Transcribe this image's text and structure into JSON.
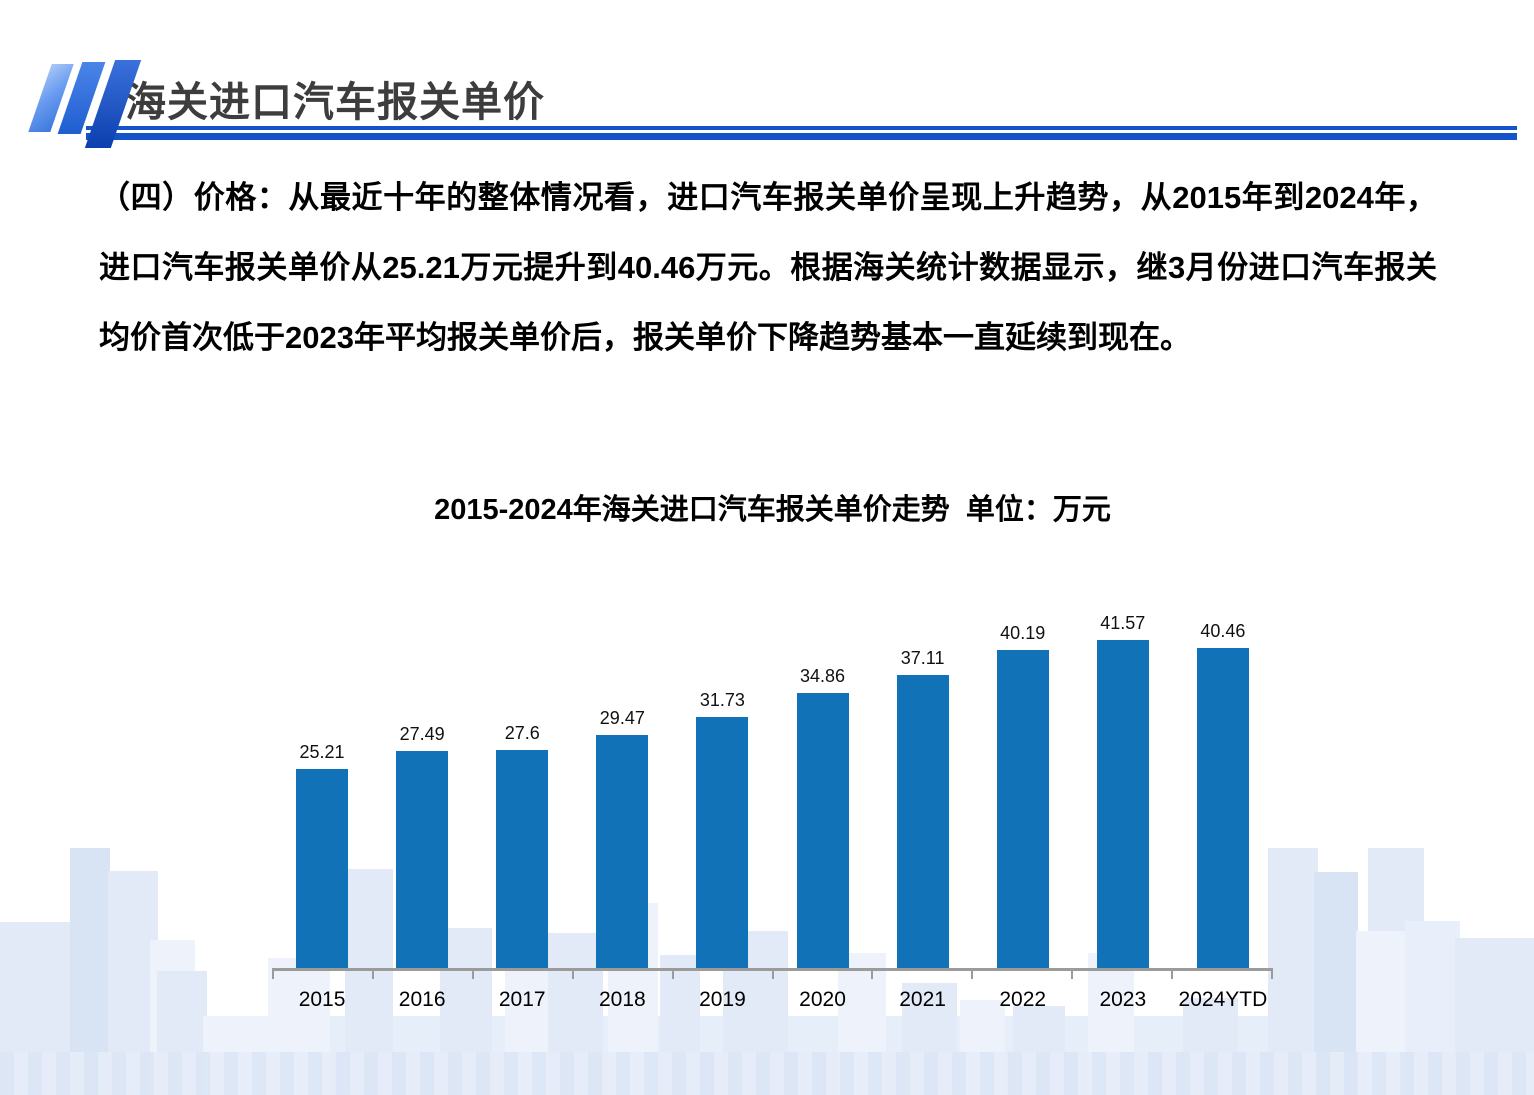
{
  "slide": {
    "header": {
      "title": "海关进口汽车报关单价"
    },
    "paragraph": "（四）价格：从最近十年的整体情况看，进口汽车报关单价呈现上升趋势，从2015年到2024年，进口汽车报关单价从25.21万元提升到40.46万元。根据海关统计数据显示，继3月份进口汽车报关均价首次低于2023年平均报关单价后，报关单价下降趋势基本一直延续到现在。"
  },
  "chart_data": {
    "type": "bar",
    "title": "2015-2024年海关进口汽车报关单价走势  单位：万元",
    "categories": [
      "2015",
      "2016",
      "2017",
      "2018",
      "2019",
      "2020",
      "2021",
      "2022",
      "2023",
      "2024YTD"
    ],
    "values": [
      25.21,
      27.49,
      27.6,
      29.47,
      31.73,
      34.86,
      37.11,
      40.19,
      41.57,
      40.46
    ],
    "unit": "万元",
    "xlabel": "",
    "ylabel": "",
    "ylim": [
      0,
      45
    ],
    "grid": false,
    "legend": false,
    "data_labels": true
  },
  "colors": {
    "bar": "#1272b8",
    "accent_line": "#1553c8",
    "axis": "#9b9b9b",
    "header_text": "#3d3d3d"
  }
}
